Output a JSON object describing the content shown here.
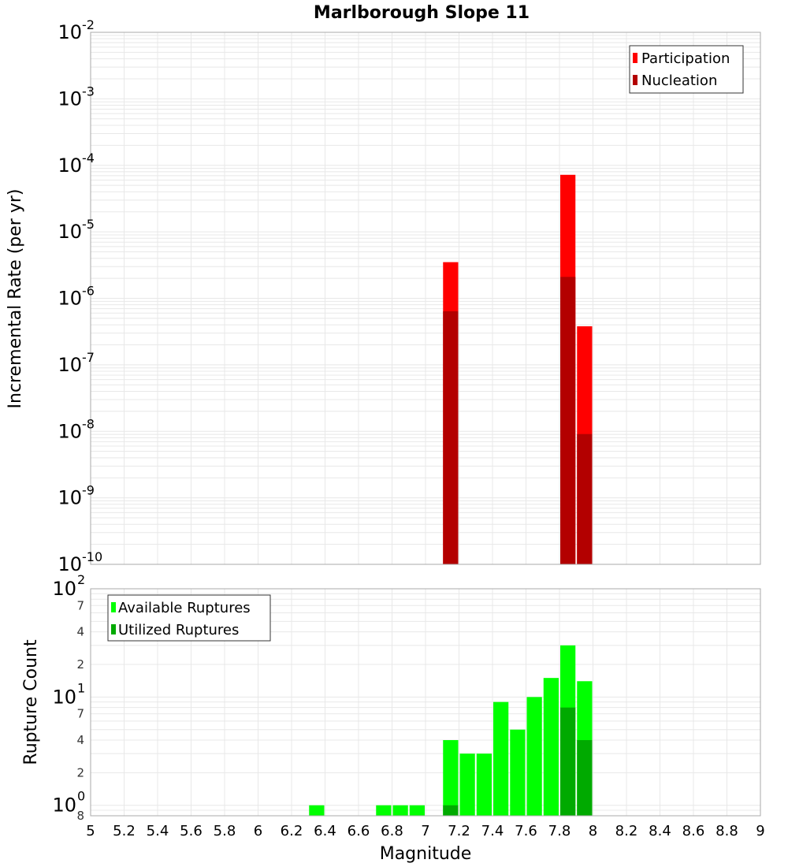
{
  "title": "Marlborough Slope 11",
  "colors": {
    "participation": "#ff0000",
    "nucleation": "#b30000",
    "available": "#00ff00",
    "utilized": "#00aa00",
    "grid": "#e8e8e8",
    "frame": "#aaaaaa"
  },
  "chart_data": [
    {
      "type": "bar",
      "title": "Marlborough Slope 11",
      "xlabel": "Magnitude",
      "ylabel": "Incremental Rate (per yr)",
      "yscale": "log",
      "xlim": [
        5,
        9
      ],
      "ylim": [
        1e-10,
        0.01
      ],
      "y_tick_exponents": [
        -2,
        -3,
        -4,
        -5,
        -6,
        -7,
        -8,
        -9,
        -10
      ],
      "x_ticks": [
        "5",
        "5.2",
        "5.4",
        "5.6",
        "5.8",
        "6",
        "6.2",
        "6.4",
        "6.6",
        "6.8",
        "7",
        "7.2",
        "7.4",
        "7.6",
        "7.8",
        "8",
        "8.2",
        "8.4",
        "8.6",
        "8.8",
        "9"
      ],
      "grid": true,
      "legend_position": "top-right",
      "bin_width": 0.1,
      "series": [
        {
          "name": "Participation",
          "color": "#ff0000",
          "points": [
            {
              "x": 7.15,
              "y": 3.5e-06
            },
            {
              "x": 7.85,
              "y": 7.2e-05
            },
            {
              "x": 7.95,
              "y": 3.8e-07
            }
          ]
        },
        {
          "name": "Nucleation",
          "color": "#b30000",
          "points": [
            {
              "x": 7.15,
              "y": 6.4e-07
            },
            {
              "x": 7.85,
              "y": 2.1e-06
            },
            {
              "x": 7.95,
              "y": 9.1e-09
            }
          ]
        }
      ]
    },
    {
      "type": "bar",
      "xlabel": "Magnitude",
      "ylabel": "Rupture Count",
      "yscale": "log",
      "xlim": [
        5,
        9
      ],
      "ylim": [
        0.8,
        100
      ],
      "y_major_ticks": [
        {
          "value": 100,
          "exp": "2"
        },
        {
          "value": 10,
          "exp": "1"
        },
        {
          "value": 1,
          "exp": "0"
        }
      ],
      "y_minor_labels": [
        {
          "value": 70,
          "label": "7"
        },
        {
          "value": 40,
          "label": "4"
        },
        {
          "value": 20,
          "label": "2"
        },
        {
          "value": 7,
          "label": "7"
        },
        {
          "value": 4,
          "label": "4"
        },
        {
          "value": 2,
          "label": "2"
        },
        {
          "value": 0.8,
          "label": "8"
        }
      ],
      "x_ticks": [
        "5",
        "5.2",
        "5.4",
        "5.6",
        "5.8",
        "6",
        "6.2",
        "6.4",
        "6.6",
        "6.8",
        "7",
        "7.2",
        "7.4",
        "7.6",
        "7.8",
        "8",
        "8.2",
        "8.4",
        "8.6",
        "8.8",
        "9"
      ],
      "grid": true,
      "legend_position": "top-left",
      "bin_width": 0.1,
      "series": [
        {
          "name": "Available Ruptures",
          "color": "#00ff00",
          "points": [
            {
              "x": 6.35,
              "y": 1
            },
            {
              "x": 6.75,
              "y": 1
            },
            {
              "x": 6.85,
              "y": 1
            },
            {
              "x": 6.95,
              "y": 1
            },
            {
              "x": 7.15,
              "y": 4
            },
            {
              "x": 7.25,
              "y": 3
            },
            {
              "x": 7.35,
              "y": 3
            },
            {
              "x": 7.45,
              "y": 9
            },
            {
              "x": 7.55,
              "y": 5
            },
            {
              "x": 7.65,
              "y": 10
            },
            {
              "x": 7.75,
              "y": 15
            },
            {
              "x": 7.85,
              "y": 30
            },
            {
              "x": 7.95,
              "y": 14
            }
          ]
        },
        {
          "name": "Utilized Ruptures",
          "color": "#00aa00",
          "points": [
            {
              "x": 7.15,
              "y": 1
            },
            {
              "x": 7.85,
              "y": 8
            },
            {
              "x": 7.95,
              "y": 4
            }
          ]
        }
      ]
    }
  ]
}
